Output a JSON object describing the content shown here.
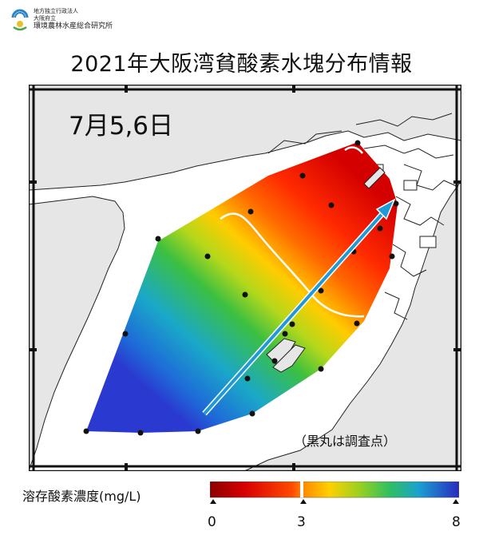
{
  "org": {
    "line1": "地方独立行政法人",
    "line2": "大阪府立",
    "line3": "環境農林水産総合研究所"
  },
  "title": "2021年大阪湾貧酸素水塊分布情報",
  "map": {
    "date_label": "7月5,6日",
    "note": "（黒丸は調査点）",
    "colors": {
      "sea": "#ffffff",
      "land": "#e6e6e6",
      "arrow": "#1e9ad6"
    },
    "survey_point_count": 23
  },
  "legend": {
    "label": "溶存酸素濃度(mg/L)",
    "ticks": [
      "0",
      "3",
      "8"
    ],
    "range": [
      0,
      8
    ],
    "threshold": 3
  }
}
